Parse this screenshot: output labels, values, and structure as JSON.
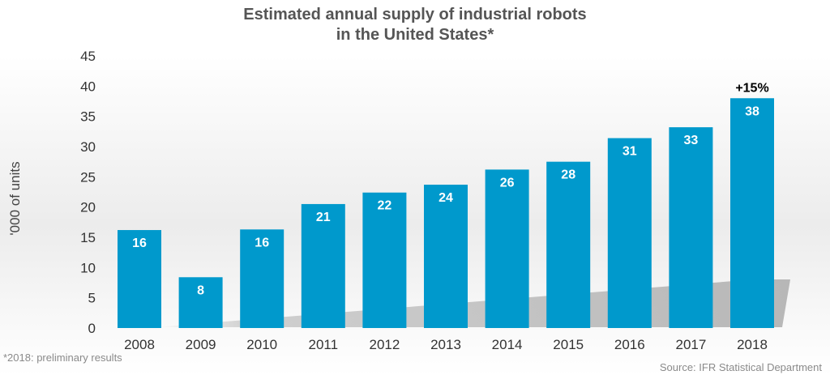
{
  "chart_data": {
    "type": "bar",
    "title_lines": [
      "Estimated annual supply of industrial robots",
      "in the United States*"
    ],
    "ylabel": "'000 of units",
    "xlabel": "",
    "categories": [
      "2008",
      "2009",
      "2010",
      "2011",
      "2012",
      "2013",
      "2014",
      "2015",
      "2016",
      "2017",
      "2018"
    ],
    "values": [
      16.2,
      8.4,
      16.3,
      20.5,
      22.4,
      23.7,
      26.2,
      27.5,
      31.4,
      33.2,
      38.0
    ],
    "data_labels": [
      "16",
      "8",
      "16",
      "21",
      "22",
      "24",
      "26",
      "28",
      "31",
      "33",
      "38"
    ],
    "ylim": [
      0,
      45
    ],
    "yticks": [
      0,
      5,
      10,
      15,
      20,
      25,
      30,
      35,
      40,
      45
    ],
    "grid": false,
    "bar_color": "#0099cc",
    "annotation": {
      "category": "2018",
      "text": "+15%"
    }
  },
  "footer": {
    "note": "*2018: preliminary results",
    "source": "Source: IFR Statistical Department"
  }
}
